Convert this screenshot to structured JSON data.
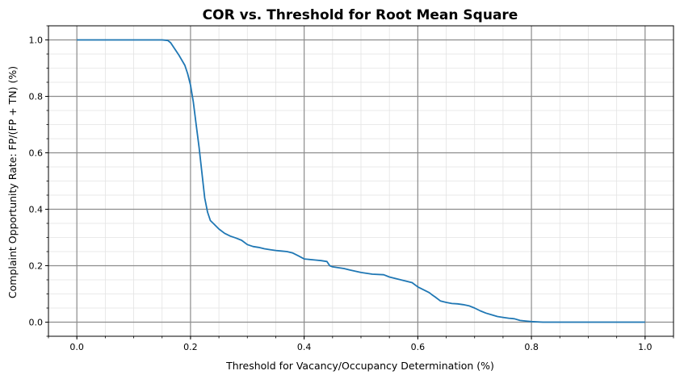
{
  "chart_data": {
    "type": "line",
    "title": "COR vs. Threshold for Root Mean Square",
    "xlabel": "Threshold for Vacancy/Occupancy Determination (%)",
    "ylabel": "Complaint Opportunity Rate: FP/(FP + TN) (%)",
    "xlim": [
      -0.05,
      1.05
    ],
    "ylim": [
      -0.05,
      1.05
    ],
    "xticks": [
      0.0,
      0.2,
      0.4,
      0.6,
      0.8,
      1.0
    ],
    "xtick_labels": [
      "0.0",
      "0.2",
      "0.4",
      "0.6",
      "0.8",
      "1.0"
    ],
    "yticks": [
      0.0,
      0.2,
      0.4,
      0.6,
      0.8,
      1.0
    ],
    "ytick_labels": [
      "0.0",
      "0.2",
      "0.4",
      "0.6",
      "0.8",
      "1.0"
    ],
    "minor_step": 0.05,
    "grid": true,
    "line_color": "#1f77b4",
    "major_grid_color": "#8c8c8c",
    "minor_grid_color": "#e3e3e3",
    "series": [
      {
        "x": [
          0.0,
          0.05,
          0.1,
          0.15,
          0.16,
          0.165,
          0.17,
          0.18,
          0.19,
          0.195,
          0.2,
          0.205,
          0.21,
          0.215,
          0.22,
          0.225,
          0.23,
          0.235,
          0.24,
          0.25,
          0.26,
          0.27,
          0.28,
          0.29,
          0.3,
          0.31,
          0.32,
          0.33,
          0.34,
          0.35,
          0.36,
          0.37,
          0.38,
          0.39,
          0.4,
          0.42,
          0.43,
          0.44,
          0.445,
          0.45,
          0.47,
          0.48,
          0.5,
          0.52,
          0.54,
          0.55,
          0.56,
          0.58,
          0.59,
          0.6,
          0.61,
          0.62,
          0.625,
          0.63,
          0.64,
          0.65,
          0.66,
          0.67,
          0.68,
          0.69,
          0.7,
          0.71,
          0.72,
          0.73,
          0.74,
          0.75,
          0.76,
          0.77,
          0.78,
          0.79,
          0.8,
          0.81,
          0.82,
          0.85,
          0.9,
          1.0
        ],
        "y": [
          1.0,
          1.0,
          1.0,
          1.0,
          0.998,
          0.99,
          0.975,
          0.945,
          0.91,
          0.88,
          0.84,
          0.78,
          0.7,
          0.62,
          0.53,
          0.44,
          0.39,
          0.36,
          0.35,
          0.33,
          0.315,
          0.305,
          0.298,
          0.29,
          0.275,
          0.268,
          0.265,
          0.26,
          0.257,
          0.254,
          0.252,
          0.25,
          0.245,
          0.235,
          0.224,
          0.22,
          0.218,
          0.215,
          0.2,
          0.196,
          0.19,
          0.185,
          0.176,
          0.17,
          0.168,
          0.16,
          0.155,
          0.145,
          0.14,
          0.125,
          0.115,
          0.105,
          0.097,
          0.09,
          0.075,
          0.07,
          0.066,
          0.065,
          0.062,
          0.058,
          0.05,
          0.04,
          0.032,
          0.026,
          0.02,
          0.017,
          0.014,
          0.012,
          0.006,
          0.004,
          0.002,
          0.001,
          0.0,
          0.0,
          0.0,
          0.0
        ]
      }
    ]
  }
}
